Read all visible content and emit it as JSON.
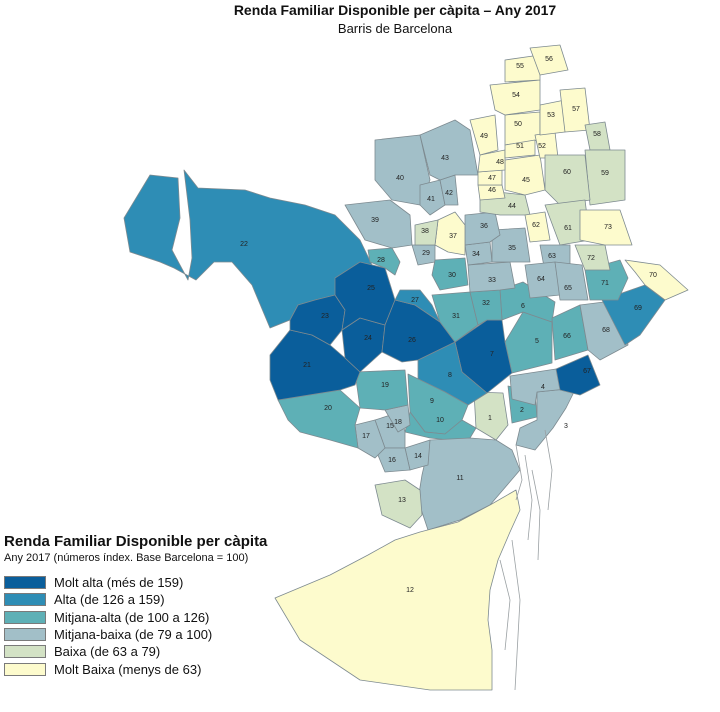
{
  "title": "Renda Familiar Disponible per càpita – Any 2017",
  "subtitle": "Barris de Barcelona",
  "legend": {
    "title": "Renda Familiar Disponible per càpita",
    "subtitle": "Any 2017 (números índex. Base Barcelona = 100)",
    "items": [
      {
        "label": "Molt alta (més de 159)",
        "color": "#0a5e9b"
      },
      {
        "label": "Alta (de 126 a 159)",
        "color": "#2e8db5"
      },
      {
        "label": "Mitjana-alta  (de 100 a 126)",
        "color": "#5eb0b6"
      },
      {
        "label": "Mitjana-baixa  (de 79 a 100)",
        "color": "#a2bfc8"
      },
      {
        "label": "Baixa (de 63 a 79)",
        "color": "#d3e2c5"
      },
      {
        "label": "Molt Baixa (menys de 63)",
        "color": "#fdfbcd"
      }
    ]
  },
  "neighborhoods": [
    {
      "id": "1",
      "cls": 4
    },
    {
      "id": "2",
      "cls": 2
    },
    {
      "id": "3",
      "cls": 3
    },
    {
      "id": "4",
      "cls": 3
    },
    {
      "id": "5",
      "cls": 2
    },
    {
      "id": "6",
      "cls": 2
    },
    {
      "id": "7",
      "cls": 0
    },
    {
      "id": "8",
      "cls": 1
    },
    {
      "id": "9",
      "cls": 2
    },
    {
      "id": "10",
      "cls": 2
    },
    {
      "id": "11",
      "cls": 3
    },
    {
      "id": "12",
      "cls": 5
    },
    {
      "id": "13",
      "cls": 4
    },
    {
      "id": "14",
      "cls": 3
    },
    {
      "id": "15",
      "cls": 3
    },
    {
      "id": "16",
      "cls": 3
    },
    {
      "id": "17",
      "cls": 3
    },
    {
      "id": "18",
      "cls": 3
    },
    {
      "id": "19",
      "cls": 2
    },
    {
      "id": "20",
      "cls": 2
    },
    {
      "id": "21",
      "cls": 0
    },
    {
      "id": "22",
      "cls": 1
    },
    {
      "id": "23",
      "cls": 0
    },
    {
      "id": "24",
      "cls": 0
    },
    {
      "id": "25",
      "cls": 0
    },
    {
      "id": "26",
      "cls": 0
    },
    {
      "id": "27",
      "cls": 1
    },
    {
      "id": "28",
      "cls": 2
    },
    {
      "id": "29",
      "cls": 3
    },
    {
      "id": "30",
      "cls": 2
    },
    {
      "id": "31",
      "cls": 2
    },
    {
      "id": "32",
      "cls": 2
    },
    {
      "id": "33",
      "cls": 3
    },
    {
      "id": "34",
      "cls": 3
    },
    {
      "id": "35",
      "cls": 3
    },
    {
      "id": "36",
      "cls": 3
    },
    {
      "id": "37",
      "cls": 5
    },
    {
      "id": "38",
      "cls": 4
    },
    {
      "id": "39",
      "cls": 3
    },
    {
      "id": "40",
      "cls": 3
    },
    {
      "id": "41",
      "cls": 3
    },
    {
      "id": "42",
      "cls": 3
    },
    {
      "id": "43",
      "cls": 3
    },
    {
      "id": "44",
      "cls": 4
    },
    {
      "id": "45",
      "cls": 5
    },
    {
      "id": "46",
      "cls": 5
    },
    {
      "id": "47",
      "cls": 5
    },
    {
      "id": "48",
      "cls": 5
    },
    {
      "id": "49",
      "cls": 5
    },
    {
      "id": "50",
      "cls": 5
    },
    {
      "id": "51",
      "cls": 5
    },
    {
      "id": "52",
      "cls": 5
    },
    {
      "id": "53",
      "cls": 5
    },
    {
      "id": "54",
      "cls": 5
    },
    {
      "id": "55",
      "cls": 5
    },
    {
      "id": "56",
      "cls": 5
    },
    {
      "id": "57",
      "cls": 5
    },
    {
      "id": "58",
      "cls": 4
    },
    {
      "id": "59",
      "cls": 4
    },
    {
      "id": "60",
      "cls": 4
    },
    {
      "id": "61",
      "cls": 4
    },
    {
      "id": "62",
      "cls": 5
    },
    {
      "id": "63",
      "cls": 3
    },
    {
      "id": "64",
      "cls": 3
    },
    {
      "id": "65",
      "cls": 3
    },
    {
      "id": "66",
      "cls": 2
    },
    {
      "id": "67",
      "cls": 0
    },
    {
      "id": "68",
      "cls": 3
    },
    {
      "id": "69",
      "cls": 1
    },
    {
      "id": "70",
      "cls": 5
    },
    {
      "id": "71",
      "cls": 2
    },
    {
      "id": "72",
      "cls": 4
    },
    {
      "id": "73",
      "cls": 5
    }
  ]
}
